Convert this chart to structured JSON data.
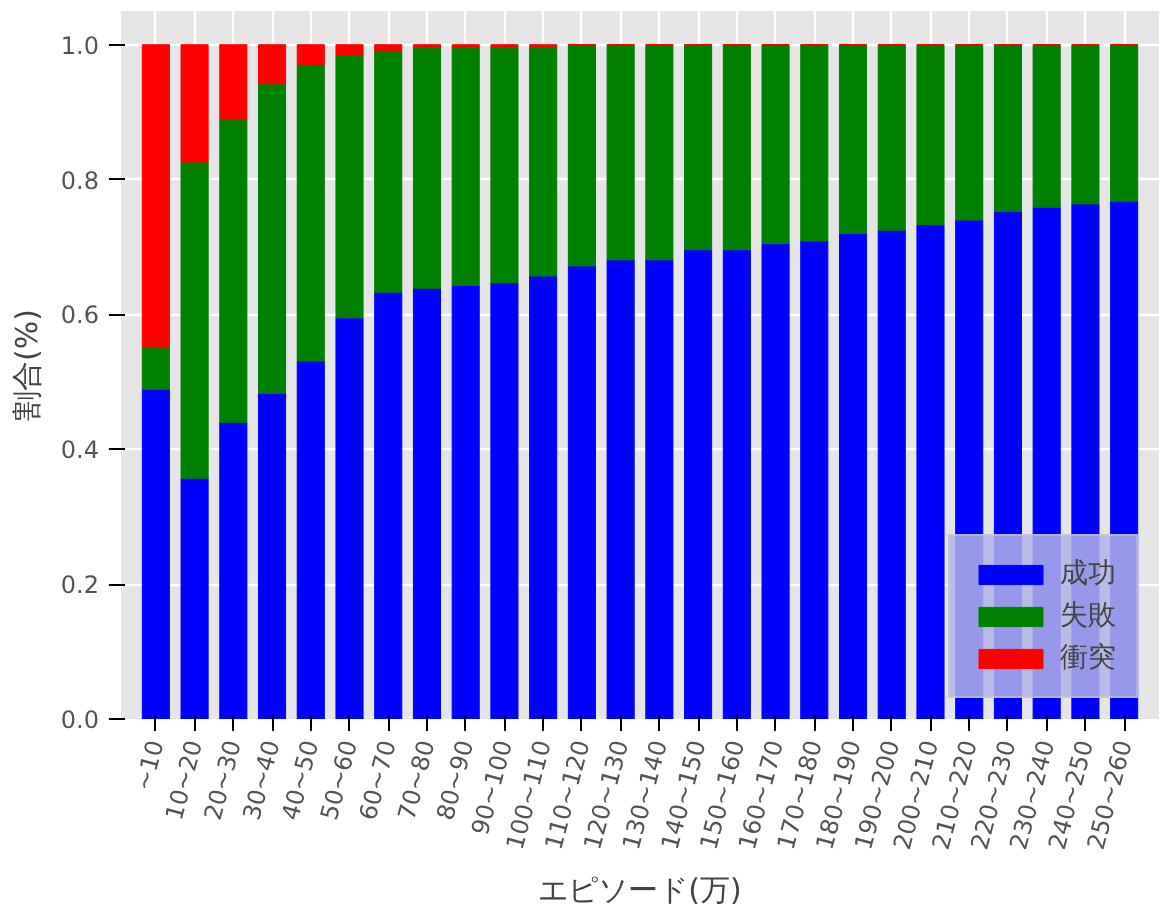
{
  "chart_data": {
    "type": "bar",
    "stacked": true,
    "xlabel": "エピソード(万)",
    "ylabel": "割合(%)",
    "categories": [
      "~10",
      "10~20",
      "20~30",
      "30~40",
      "40~50",
      "50~60",
      "60~70",
      "70~80",
      "80~90",
      "90~100",
      "100~110",
      "110~120",
      "120~130",
      "130~140",
      "140~150",
      "150~160",
      "160~170",
      "170~180",
      "180~190",
      "190~200",
      "200~210",
      "210~220",
      "220~230",
      "230~240",
      "240~250",
      "250~260"
    ],
    "series": [
      {
        "name": "成功",
        "color": "#0000ff",
        "values": [
          0.489,
          0.357,
          0.44,
          0.483,
          0.531,
          0.595,
          0.633,
          0.639,
          0.643,
          0.647,
          0.657,
          0.672,
          0.681,
          0.681,
          0.696,
          0.696,
          0.705,
          0.709,
          0.72,
          0.725,
          0.733,
          0.74,
          0.753,
          0.759,
          0.764,
          0.768
        ]
      },
      {
        "name": "失敗",
        "color": "#008000",
        "values": [
          0.062,
          0.469,
          0.449,
          0.459,
          0.44,
          0.389,
          0.358,
          0.357,
          0.353,
          0.349,
          0.339,
          0.328,
          0.319,
          0.319,
          0.304,
          0.304,
          0.295,
          0.291,
          0.28,
          0.275,
          0.267,
          0.26,
          0.247,
          0.241,
          0.236,
          0.232
        ]
      },
      {
        "name": "衝突",
        "color": "#ff0000",
        "values": [
          0.449,
          0.174,
          0.111,
          0.058,
          0.029,
          0.016,
          0.009,
          0.004,
          0.004,
          0.004,
          0.004,
          0,
          0,
          0,
          0,
          0,
          0,
          0,
          0,
          0,
          0,
          0,
          0,
          0,
          0,
          0
        ]
      }
    ],
    "ylim": [
      0,
      1.05
    ],
    "yticks": [
      {
        "value": 0,
        "label": "0.0"
      },
      0.2,
      0.4,
      0.6,
      0.8,
      {
        "value": 1,
        "label": "1.0"
      }
    ],
    "grid": true,
    "legend": "bottom right"
  }
}
